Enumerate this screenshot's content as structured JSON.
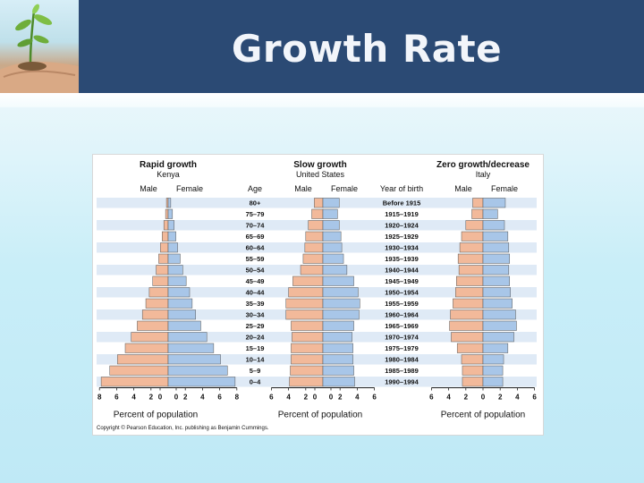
{
  "slide": {
    "title": "Growth Rate",
    "colors": {
      "header_bg": "#2b4a74",
      "male_bar": "#f2b99a",
      "female_bar": "#a8c6e8",
      "band": "#dfeaf6"
    }
  },
  "figure": {
    "copyright": "Copyright © Pearson Education, Inc. publishing as Benjamin Cummings.",
    "age_header": "Age",
    "year_header": "Year of birth",
    "male_label": "Male",
    "female_label": "Female",
    "x_label": "Percent of population"
  },
  "chart_data": [
    {
      "type": "bar",
      "title": "Rapid growth",
      "subtitle": "Kenya",
      "categories": [
        "80+",
        "75–79",
        "70–74",
        "65–69",
        "60–64",
        "55–59",
        "50–54",
        "45–49",
        "40–44",
        "35–39",
        "30–34",
        "25–29",
        "20–24",
        "15–19",
        "10–14",
        "5–9",
        "0–4"
      ],
      "series": [
        {
          "name": "Male",
          "values": [
            0.2,
            0.3,
            0.5,
            0.7,
            0.9,
            1.1,
            1.4,
            1.8,
            2.2,
            2.6,
            3.0,
            3.6,
            4.3,
            5.0,
            5.9,
            6.8,
            7.8
          ]
        },
        {
          "name": "Female",
          "values": [
            0.3,
            0.5,
            0.7,
            0.9,
            1.1,
            1.4,
            1.7,
            2.1,
            2.5,
            2.8,
            3.2,
            3.8,
            4.5,
            5.3,
            6.1,
            6.9,
            7.8
          ]
        }
      ],
      "xlabel": "Percent of population",
      "xticks": [
        "8",
        "6",
        "4",
        "2",
        "0",
        "0",
        "2",
        "4",
        "6",
        "8"
      ],
      "xlim": [
        -8,
        8
      ]
    },
    {
      "type": "bar",
      "title": "Slow growth",
      "subtitle": "United States",
      "categories": [
        "80+",
        "75–79",
        "70–74",
        "65–69",
        "60–64",
        "55–59",
        "50–54",
        "45–49",
        "40–44",
        "35–39",
        "30–34",
        "25–29",
        "20–24",
        "15–19",
        "10–14",
        "5–9",
        "0–4"
      ],
      "birth_years": [
        "Before 1915",
        "1915–1919",
        "1920–1924",
        "1925–1929",
        "1930–1934",
        "1935–1939",
        "1940–1944",
        "1945–1949",
        "1950–1954",
        "1955–1959",
        "1960–1964",
        "1965–1969",
        "1970–1974",
        "1975–1979",
        "1980–1984",
        "1985–1989",
        "1990–1994"
      ],
      "series": [
        {
          "name": "Male",
          "values": [
            1.0,
            1.3,
            1.7,
            2.0,
            2.1,
            2.3,
            2.6,
            3.5,
            4.0,
            4.3,
            4.3,
            3.7,
            3.6,
            3.7,
            3.7,
            3.8,
            3.9
          ]
        },
        {
          "name": "Female",
          "values": [
            1.9,
            1.7,
            1.9,
            2.1,
            2.2,
            2.4,
            2.8,
            3.6,
            4.1,
            4.3,
            4.2,
            3.6,
            3.4,
            3.5,
            3.5,
            3.6,
            3.7
          ]
        }
      ],
      "xlabel": "Percent of population",
      "xticks": [
        "6",
        "4",
        "2",
        "0",
        "0",
        "2",
        "4",
        "6"
      ],
      "xlim": [
        -6,
        6
      ]
    },
    {
      "type": "bar",
      "title": "Zero growth/decrease",
      "subtitle": "Italy",
      "categories": [
        "80+",
        "75–79",
        "70–74",
        "65–69",
        "60–64",
        "55–59",
        "50–54",
        "45–49",
        "40–44",
        "35–39",
        "30–34",
        "25–29",
        "20–24",
        "15–19",
        "10–14",
        "5–9",
        "0–4"
      ],
      "series": [
        {
          "name": "Male",
          "values": [
            1.2,
            1.3,
            2.0,
            2.5,
            2.7,
            2.9,
            2.8,
            3.1,
            3.2,
            3.5,
            3.8,
            3.9,
            3.7,
            3.0,
            2.5,
            2.4,
            2.4
          ]
        },
        {
          "name": "Female",
          "values": [
            2.6,
            1.7,
            2.5,
            2.9,
            3.0,
            3.1,
            3.0,
            3.1,
            3.2,
            3.4,
            3.8,
            3.9,
            3.6,
            2.9,
            2.4,
            2.3,
            2.3
          ]
        }
      ],
      "xlabel": "Percent of population",
      "xticks": [
        "6",
        "4",
        "2",
        "0",
        "2",
        "4",
        "6"
      ],
      "xlim": [
        -6,
        6
      ]
    }
  ]
}
